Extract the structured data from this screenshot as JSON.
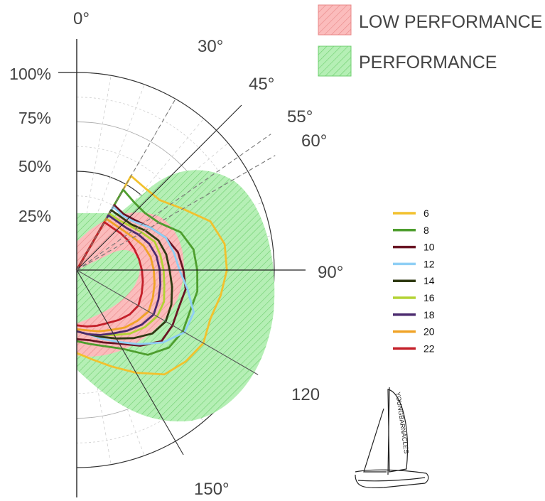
{
  "chart_data": {
    "type": "polar-line",
    "title": "",
    "angle_ticks": [
      {
        "label": "0°",
        "deg": 0
      },
      {
        "label": "30°",
        "deg": 30
      },
      {
        "label": "45°",
        "deg": 45
      },
      {
        "label": "55°",
        "deg": 55
      },
      {
        "label": "60°",
        "deg": 60
      },
      {
        "label": "90°",
        "deg": 90
      },
      {
        "label": "120",
        "deg": 120
      },
      {
        "label": "150°",
        "deg": 150
      }
    ],
    "radial_ticks": [
      "25%",
      "50%",
      "75%",
      "100%"
    ],
    "radial_values": [
      25,
      50,
      75,
      100
    ],
    "areas": [
      {
        "name": "LOW PERFORMANCE",
        "color": "#f4a3a3"
      },
      {
        "name": "PERFORMANCE",
        "color": "#8ee08e"
      }
    ],
    "series": [
      {
        "name": "6",
        "color": "#f2c12e",
        "points": [
          [
            30,
            55
          ],
          [
            40,
            54
          ],
          [
            50,
            55
          ],
          [
            60,
            62
          ],
          [
            70,
            72
          ],
          [
            80,
            76
          ],
          [
            90,
            76
          ],
          [
            100,
            74
          ],
          [
            110,
            72
          ],
          [
            120,
            74
          ],
          [
            130,
            72
          ],
          [
            140,
            69
          ],
          [
            150,
            60
          ],
          [
            160,
            52
          ],
          [
            170,
            46
          ],
          [
            180,
            42
          ]
        ]
      },
      {
        "name": "8",
        "color": "#4e9e2e",
        "points": [
          [
            30,
            47
          ],
          [
            40,
            45
          ],
          [
            50,
            45
          ],
          [
            60,
            48
          ],
          [
            70,
            56
          ],
          [
            80,
            60
          ],
          [
            90,
            61
          ],
          [
            100,
            62
          ],
          [
            110,
            61
          ],
          [
            120,
            62
          ],
          [
            130,
            61
          ],
          [
            140,
            56
          ],
          [
            150,
            46
          ],
          [
            160,
            41
          ],
          [
            170,
            38
          ],
          [
            180,
            36
          ]
        ]
      },
      {
        "name": "10",
        "color": "#6a1524",
        "points": [
          [
            30,
            38
          ],
          [
            40,
            37
          ],
          [
            50,
            39
          ],
          [
            60,
            43
          ],
          [
            70,
            48
          ],
          [
            80,
            52
          ],
          [
            90,
            54
          ],
          [
            100,
            56
          ],
          [
            110,
            55
          ],
          [
            120,
            56
          ],
          [
            130,
            56
          ],
          [
            140,
            50
          ],
          [
            150,
            43
          ],
          [
            160,
            39
          ],
          [
            170,
            36
          ],
          [
            180,
            35
          ]
        ]
      },
      {
        "name": "12",
        "color": "#8fcff5",
        "points": [
          [
            30,
            37
          ],
          [
            40,
            36
          ],
          [
            50,
            38
          ],
          [
            60,
            43
          ],
          [
            70,
            48
          ],
          [
            80,
            50
          ],
          [
            90,
            52
          ],
          [
            100,
            57
          ],
          [
            110,
            63
          ],
          [
            120,
            63
          ],
          [
            130,
            57
          ],
          [
            140,
            49
          ],
          [
            150,
            42
          ],
          [
            160,
            37
          ],
          [
            170,
            33
          ],
          [
            180,
            31
          ]
        ]
      },
      {
        "name": "14",
        "color": "#2f3a12",
        "points": [
          [
            30,
            35
          ],
          [
            40,
            35
          ],
          [
            50,
            36
          ],
          [
            60,
            40
          ],
          [
            70,
            44
          ],
          [
            80,
            46
          ],
          [
            90,
            47
          ],
          [
            100,
            49
          ],
          [
            110,
            51
          ],
          [
            120,
            52
          ],
          [
            130,
            50
          ],
          [
            140,
            45
          ],
          [
            150,
            40
          ],
          [
            160,
            36
          ],
          [
            170,
            33
          ],
          [
            180,
            31
          ]
        ]
      },
      {
        "name": "16",
        "color": "#b3d334",
        "points": [
          [
            30,
            33
          ],
          [
            40,
            33
          ],
          [
            50,
            35
          ],
          [
            60,
            38
          ],
          [
            70,
            42
          ],
          [
            80,
            43
          ],
          [
            90,
            44
          ],
          [
            100,
            45
          ],
          [
            110,
            47
          ],
          [
            120,
            47
          ],
          [
            130,
            45
          ],
          [
            140,
            42
          ],
          [
            150,
            38
          ],
          [
            160,
            35
          ],
          [
            170,
            33
          ],
          [
            180,
            31
          ]
        ]
      },
      {
        "name": "18",
        "color": "#4b2a6e",
        "points": [
          [
            30,
            32
          ],
          [
            40,
            32
          ],
          [
            50,
            33
          ],
          [
            60,
            36
          ],
          [
            70,
            39
          ],
          [
            80,
            41
          ],
          [
            90,
            42
          ],
          [
            100,
            43
          ],
          [
            110,
            44
          ],
          [
            120,
            45
          ],
          [
            130,
            43
          ],
          [
            140,
            40
          ],
          [
            150,
            37
          ],
          [
            160,
            35
          ],
          [
            170,
            33
          ],
          [
            180,
            31
          ]
        ]
      },
      {
        "name": "20",
        "color": "#f0a326",
        "points": [
          [
            30,
            30
          ],
          [
            40,
            30
          ],
          [
            50,
            31
          ],
          [
            60,
            33
          ],
          [
            70,
            36
          ],
          [
            80,
            38
          ],
          [
            90,
            39
          ],
          [
            100,
            40
          ],
          [
            110,
            41
          ],
          [
            120,
            42
          ],
          [
            130,
            40
          ],
          [
            140,
            38
          ],
          [
            150,
            35
          ],
          [
            160,
            33
          ],
          [
            170,
            31
          ],
          [
            180,
            30
          ]
        ]
      },
      {
        "name": "22",
        "color": "#c4202a",
        "points": [
          [
            30,
            28
          ],
          [
            40,
            28
          ],
          [
            50,
            29
          ],
          [
            60,
            30
          ],
          [
            70,
            31
          ],
          [
            80,
            32
          ],
          [
            90,
            33
          ],
          [
            100,
            34
          ],
          [
            110,
            35
          ],
          [
            120,
            36
          ],
          [
            130,
            35
          ],
          [
            140,
            33
          ],
          [
            150,
            31
          ],
          [
            160,
            30
          ],
          [
            170,
            29
          ],
          [
            180,
            28
          ]
        ]
      }
    ],
    "grid": true,
    "legend_position": "right"
  },
  "logo": {
    "text": "YOUNGBARNACLES"
  }
}
